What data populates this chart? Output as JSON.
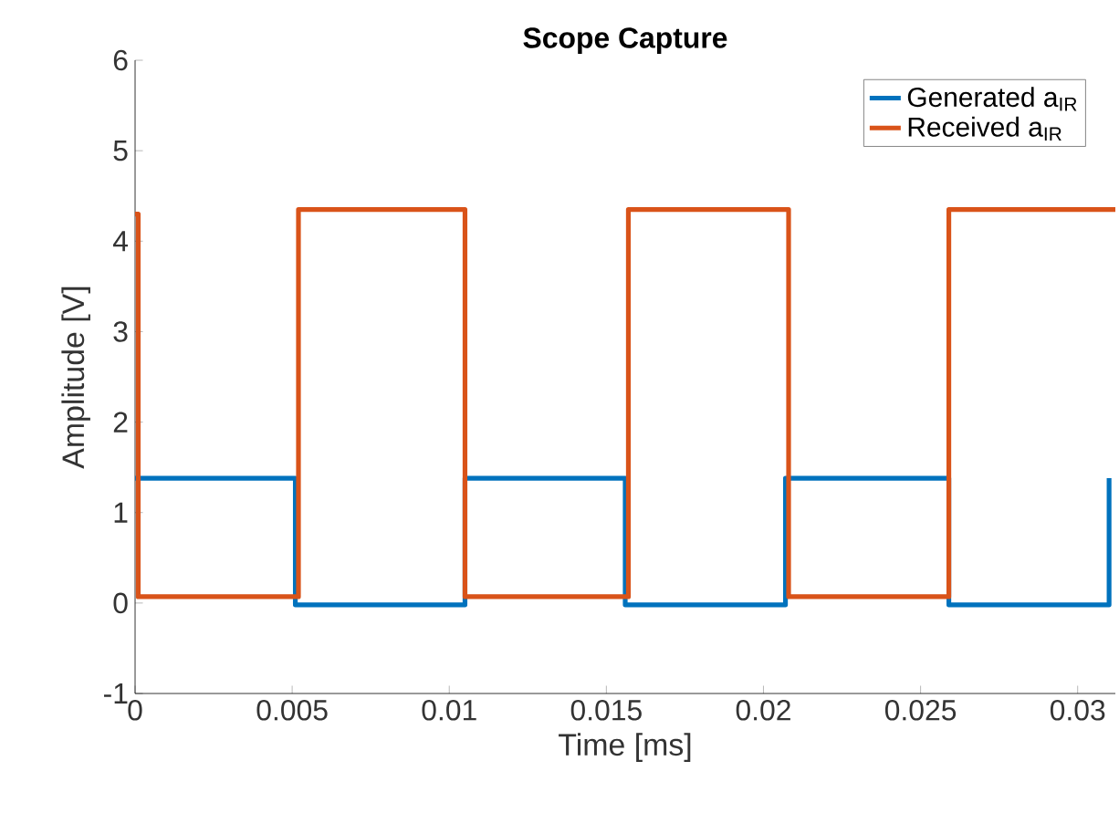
{
  "chart_data": {
    "type": "line",
    "title": "Scope Capture",
    "xlabel": "Time [ms]",
    "ylabel": "Amplitude [V]",
    "xlim": [
      0,
      0.0312
    ],
    "ylim": [
      -1,
      6
    ],
    "xticks": [
      0,
      0.005,
      0.01,
      0.015,
      0.02,
      0.025,
      0.03
    ],
    "yticks": [
      -1,
      0,
      1,
      2,
      3,
      4,
      5,
      6
    ],
    "legend": "top right",
    "grid": false,
    "marker": "none",
    "line_style": "solid",
    "series": [
      {
        "name": "Generated a$_{IR}$",
        "color": "#0072bd",
        "x": [
          0,
          0.0051,
          0.0051,
          0.0105,
          0.0105,
          0.0156,
          0.0156,
          0.0207,
          0.0207,
          0.0259,
          0.0259,
          0.031,
          0.031
        ],
        "values": [
          1.38,
          1.38,
          -0.02,
          -0.02,
          1.38,
          1.38,
          -0.02,
          -0.02,
          1.38,
          1.38,
          -0.02,
          -0.02,
          1.38
        ]
      },
      {
        "name": "Received a$_{IR}$",
        "color": "#d95319",
        "x": [
          0,
          0.0001,
          0.0001,
          0.0052,
          0.0052,
          0.0105,
          0.0105,
          0.0157,
          0.0157,
          0.0208,
          0.0208,
          0.0259,
          0.0259,
          0.0312
        ],
        "values": [
          4.3,
          4.3,
          0.07,
          0.07,
          4.35,
          4.35,
          0.07,
          0.07,
          4.35,
          4.35,
          0.07,
          0.07,
          4.35,
          4.35
        ]
      }
    ]
  }
}
